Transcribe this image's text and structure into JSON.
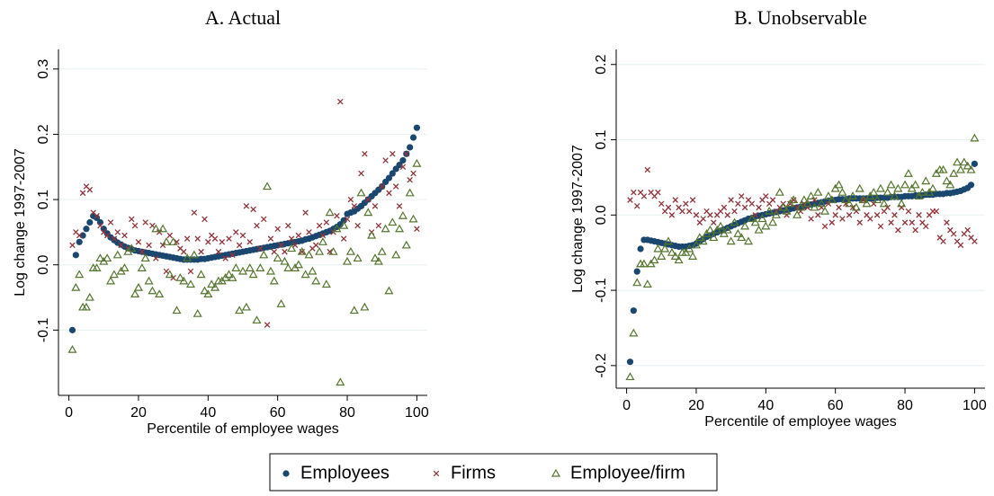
{
  "chart_data": [
    {
      "type": "scatter",
      "title": "A. Actual",
      "x_label": "Percentile of employee wages",
      "y_label": "Log change 1997-2007",
      "xlim": [
        -3,
        103
      ],
      "ylim": [
        -0.2,
        0.33
      ],
      "xticks": [
        0,
        20,
        40,
        60,
        80,
        100
      ],
      "yticks": [
        -0.1,
        {
          "value": 0,
          "label": "0.0"
        },
        0.1,
        0.2,
        0.3
      ],
      "grid": true,
      "x": [
        1,
        2,
        3,
        4,
        5,
        6,
        7,
        8,
        9,
        10,
        11,
        12,
        13,
        14,
        15,
        16,
        17,
        18,
        19,
        20,
        21,
        22,
        23,
        24,
        25,
        26,
        27,
        28,
        29,
        30,
        31,
        32,
        33,
        34,
        35,
        36,
        37,
        38,
        39,
        40,
        41,
        42,
        43,
        44,
        45,
        46,
        47,
        48,
        49,
        50,
        51,
        52,
        53,
        54,
        55,
        56,
        57,
        58,
        59,
        60,
        61,
        62,
        63,
        64,
        65,
        66,
        67,
        68,
        69,
        70,
        71,
        72,
        73,
        74,
        75,
        76,
        77,
        78,
        79,
        80,
        81,
        82,
        83,
        84,
        85,
        86,
        87,
        88,
        89,
        90,
        91,
        92,
        93,
        94,
        95,
        96,
        97,
        98,
        99,
        100
      ],
      "series": [
        {
          "name": "Employees",
          "color": "#1a476f",
          "marker": "circle",
          "values": [
            -0.1,
            0.015,
            0.035,
            0.045,
            0.055,
            0.065,
            0.075,
            0.072,
            0.065,
            0.055,
            0.048,
            0.042,
            0.038,
            0.034,
            0.031,
            0.028,
            0.026,
            0.024,
            0.022,
            0.021,
            0.02,
            0.019,
            0.018,
            0.017,
            0.016,
            0.015,
            0.014,
            0.013,
            0.012,
            0.011,
            0.01,
            0.009,
            0.008,
            0.008,
            0.008,
            0.008,
            0.008,
            0.009,
            0.009,
            0.01,
            0.011,
            0.012,
            0.013,
            0.014,
            0.015,
            0.016,
            0.017,
            0.018,
            0.019,
            0.02,
            0.021,
            0.022,
            0.023,
            0.024,
            0.025,
            0.026,
            0.027,
            0.028,
            0.029,
            0.03,
            0.031,
            0.032,
            0.033,
            0.034,
            0.035,
            0.036,
            0.037,
            0.039,
            0.04,
            0.042,
            0.044,
            0.046,
            0.048,
            0.05,
            0.052,
            0.055,
            0.058,
            0.062,
            0.068,
            0.078,
            0.08,
            0.082,
            0.086,
            0.09,
            0.095,
            0.1,
            0.105,
            0.11,
            0.115,
            0.12,
            0.127,
            0.133,
            0.14,
            0.147,
            0.153,
            0.16,
            0.17,
            0.18,
            0.195,
            0.21
          ]
        },
        {
          "name": "Firms",
          "color": "#90353b",
          "marker": "cross",
          "values": [
            0.03,
            0.05,
            0.045,
            0.11,
            0.12,
            0.115,
            0.08,
            0.075,
            0.06,
            0.05,
            0.045,
            0.065,
            0.04,
            0.05,
            0.03,
            0.045,
            0.025,
            0.07,
            0.06,
            0.035,
            0.02,
            0.065,
            0.03,
            0.06,
            0.01,
            0.05,
            0.03,
            -0.01,
            0.045,
            -0.02,
            0.035,
            0.025,
            0.02,
            0.04,
            -0.01,
            0.08,
            0.04,
            0.02,
            0.07,
            0.035,
            0.045,
            0.04,
            0.02,
            0.035,
            0.01,
            0.04,
            0.015,
            0.05,
            0.03,
            0.045,
            0.09,
            0.035,
            0.085,
            0.06,
            0.025,
            0.07,
            -0.092,
            0.04,
            0.02,
            0.055,
            0.03,
            0.02,
            0.06,
            0.04,
            0.03,
            0.045,
            0.02,
            0.08,
            0.05,
            0.025,
            0.03,
            0.06,
            0.045,
            0.065,
            0.02,
            0.05,
            0.075,
            0.25,
            0.04,
            0.07,
            0.1,
            0.09,
            0.06,
            0.14,
            0.17,
            0.1,
            0.05,
            0.09,
            0.06,
            0.12,
            0.16,
            0.11,
            0.17,
            0.12,
            0.09,
            0.15,
            0.17,
            0.13,
            0.14,
            0.055
          ]
        },
        {
          "name": "Employee/firm",
          "color": "#55752f",
          "marker": "triangle",
          "values": [
            -0.13,
            -0.035,
            -0.015,
            -0.065,
            -0.065,
            -0.05,
            -0.005,
            -0.005,
            0.01,
            0.005,
            0.01,
            -0.025,
            -0.015,
            0.015,
            -0.01,
            -0.005,
            0.02,
            0.025,
            -0.045,
            -0.035,
            -0.005,
            0.01,
            -0.025,
            -0.04,
            0.055,
            -0.045,
            0.055,
            0.035,
            -0.015,
            0.035,
            -0.07,
            -0.02,
            -0.025,
            0.01,
            -0.03,
            0.015,
            -0.075,
            -0.015,
            -0.04,
            -0.045,
            -0.03,
            -0.035,
            -0.025,
            -0.025,
            -0.02,
            -0.015,
            -0.02,
            -0.005,
            -0.07,
            -0.01,
            -0.065,
            -0.005,
            -0.015,
            -0.085,
            -0.005,
            0.015,
            0.12,
            -0.01,
            -0.025,
            0.01,
            -0.06,
            0.005,
            -0.005,
            0.025,
            -0.005,
            0.0,
            0.02,
            -0.015,
            0.015,
            -0.01,
            -0.025,
            0.02,
            0.035,
            -0.03,
            0.08,
            0.02,
            0.055,
            -0.18,
            0.06,
            0.005,
            0.02,
            -0.07,
            0.01,
            0.11,
            -0.065,
            0.08,
            0.045,
            0.01,
            0.005,
            0.02,
            0.055,
            -0.04,
            0.065,
            0.015,
            0.055,
            0.075,
            0.03,
            0.11,
            0.07,
            0.155
          ]
        }
      ]
    },
    {
      "type": "scatter",
      "title": "B. Unobservable",
      "x_label": "Percentile of employee wages",
      "y_label": "Log change 1997-2007",
      "xlim": [
        -3,
        103
      ],
      "ylim": [
        -0.23,
        0.22
      ],
      "xticks": [
        0,
        20,
        40,
        60,
        80,
        100
      ],
      "yticks": [
        -0.2,
        -0.1,
        {
          "value": 0,
          "label": "0.0"
        },
        0.1,
        0.2
      ],
      "grid": true,
      "x": [
        1,
        2,
        3,
        4,
        5,
        6,
        7,
        8,
        9,
        10,
        11,
        12,
        13,
        14,
        15,
        16,
        17,
        18,
        19,
        20,
        21,
        22,
        23,
        24,
        25,
        26,
        27,
        28,
        29,
        30,
        31,
        32,
        33,
        34,
        35,
        36,
        37,
        38,
        39,
        40,
        41,
        42,
        43,
        44,
        45,
        46,
        47,
        48,
        49,
        50,
        51,
        52,
        53,
        54,
        55,
        56,
        57,
        58,
        59,
        60,
        61,
        62,
        63,
        64,
        65,
        66,
        67,
        68,
        69,
        70,
        71,
        72,
        73,
        74,
        75,
        76,
        77,
        78,
        79,
        80,
        81,
        82,
        83,
        84,
        85,
        86,
        87,
        88,
        89,
        90,
        91,
        92,
        93,
        94,
        95,
        96,
        97,
        98,
        99,
        100
      ],
      "series": [
        {
          "name": "Employees",
          "color": "#1a476f",
          "marker": "circle",
          "values": [
            -0.195,
            -0.127,
            -0.075,
            -0.045,
            -0.033,
            -0.033,
            -0.034,
            -0.035,
            -0.036,
            -0.037,
            -0.038,
            -0.039,
            -0.04,
            -0.041,
            -0.042,
            -0.042,
            -0.042,
            -0.041,
            -0.04,
            -0.038,
            -0.035,
            -0.032,
            -0.029,
            -0.027,
            -0.025,
            -0.023,
            -0.021,
            -0.019,
            -0.017,
            -0.015,
            -0.013,
            -0.011,
            -0.009,
            -0.007,
            -0.005,
            -0.004,
            -0.002,
            -0.001,
            0.0,
            0.001,
            0.002,
            0.003,
            0.004,
            0.005,
            0.006,
            0.007,
            0.008,
            0.009,
            0.01,
            0.011,
            0.012,
            0.013,
            0.014,
            0.015,
            0.016,
            0.017,
            0.018,
            0.019,
            0.02,
            0.02,
            0.021,
            0.021,
            0.021,
            0.022,
            0.022,
            0.022,
            0.022,
            0.022,
            0.022,
            0.022,
            0.022,
            0.023,
            0.023,
            0.023,
            0.023,
            0.024,
            0.024,
            0.024,
            0.024,
            0.025,
            0.025,
            0.025,
            0.026,
            0.026,
            0.026,
            0.027,
            0.027,
            0.027,
            0.028,
            0.028,
            0.028,
            0.029,
            0.029,
            0.03,
            0.031,
            0.032,
            0.034,
            0.036,
            0.04,
            0.068
          ]
        },
        {
          "name": "Firms",
          "color": "#90353b",
          "marker": "cross",
          "values": [
            0.02,
            0.03,
            0.012,
            0.03,
            0.025,
            0.06,
            0.03,
            0.025,
            0.03,
            0.015,
            0.005,
            0.01,
            0.0,
            0.02,
            0.01,
            0.005,
            0.015,
            0.005,
            0.02,
            0.0,
            -0.01,
            -0.005,
            0.005,
            0.0,
            -0.01,
            0.0,
            0.005,
            0.01,
            0.0,
            0.02,
            0.005,
            0.015,
            0.025,
            0.01,
            0.02,
            0.015,
            0.0,
            0.01,
            0.02,
            0.025,
            0.015,
            0.02,
            0.005,
            0.01,
            0.015,
            0.0,
            0.015,
            0.02,
            0.01,
            0.005,
            0.015,
            0.01,
            -0.005,
            0.02,
            0.0,
            0.01,
            -0.015,
            0.015,
            -0.01,
            0.0,
            0.01,
            -0.005,
            0.015,
            0.0,
            0.01,
            0.005,
            -0.01,
            0.02,
            0.0,
            -0.005,
            0.015,
            0.0,
            -0.015,
            0.005,
            0.01,
            -0.01,
            0.0,
            -0.02,
            0.01,
            -0.01,
            0.005,
            -0.01,
            -0.02,
            0.0,
            -0.01,
            -0.015,
            0.0,
            0.005,
            0.005,
            -0.03,
            -0.035,
            -0.01,
            -0.02,
            -0.025,
            -0.035,
            -0.04,
            -0.025,
            -0.02,
            -0.03,
            -0.035
          ]
        },
        {
          "name": "Employee/firm",
          "color": "#55752f",
          "marker": "triangle",
          "values": [
            -0.215,
            -0.157,
            -0.09,
            -0.065,
            -0.065,
            -0.092,
            -0.065,
            -0.06,
            -0.045,
            -0.055,
            -0.045,
            -0.035,
            -0.05,
            -0.055,
            -0.06,
            -0.05,
            -0.05,
            -0.045,
            -0.055,
            -0.04,
            -0.03,
            -0.035,
            -0.025,
            -0.02,
            -0.03,
            -0.02,
            -0.015,
            -0.025,
            -0.02,
            -0.035,
            -0.01,
            -0.025,
            -0.03,
            -0.015,
            -0.035,
            -0.005,
            -0.01,
            -0.02,
            -0.005,
            -0.015,
            0.005,
            -0.01,
            0.0,
            0.03,
            0.01,
            0.005,
            0.015,
            0.02,
            0.0,
            0.01,
            0.02,
            0.015,
            0.025,
            0.01,
            0.03,
            0.015,
            0.005,
            0.025,
            0.02,
            0.035,
            0.04,
            0.03,
            0.02,
            0.015,
            0.025,
            0.01,
            0.035,
            0.02,
            0.015,
            0.025,
            0.03,
            0.02,
            0.035,
            0.015,
            0.03,
            0.04,
            0.025,
            0.035,
            0.015,
            0.04,
            0.055,
            0.035,
            0.04,
            0.025,
            0.03,
            0.045,
            0.03,
            0.035,
            0.055,
            0.06,
            0.06,
            0.045,
            0.04,
            0.055,
            0.07,
            0.06,
            0.07,
            0.065,
            0.06,
            0.102
          ]
        }
      ]
    }
  ]
}
